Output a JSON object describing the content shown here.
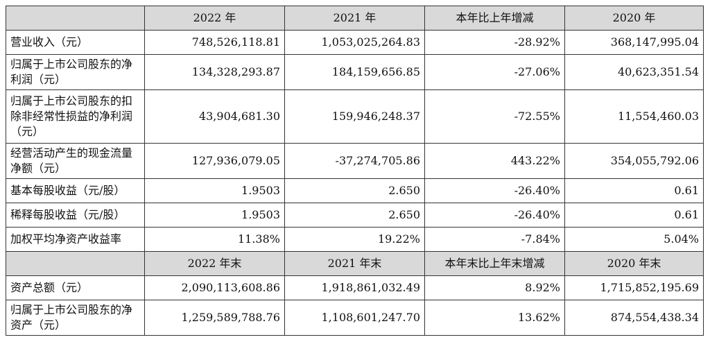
{
  "header": [
    "",
    "2022 年",
    "2021 年",
    "本年比上年增减",
    "2020 年"
  ],
  "rows": [
    {
      "label": "营业收入（元）",
      "values": [
        "748,526,118.81",
        "1,053,025,264.83",
        "-28.92%",
        "368,147,995.04"
      ]
    },
    {
      "label": "归属于上市公司股东的净利润（元）",
      "values": [
        "134,328,293.87",
        "184,159,656.85",
        "-27.06%",
        "40,623,351.54"
      ]
    },
    {
      "label": "归属于上市公司股东的扣除非经常性损益的净利润（元）",
      "values": [
        "43,904,681.30",
        "159,946,248.37",
        "-72.55%",
        "11,554,460.03"
      ]
    },
    {
      "label": "经营活动产生的现金流量净额（元）",
      "values": [
        "127,936,079.05",
        "-37,274,705.86",
        "443.22%",
        "354,055,792.06"
      ]
    },
    {
      "label": "基本每股收益（元/股）",
      "values": [
        "1.9503",
        "2.650",
        "-26.40%",
        "0.61"
      ]
    },
    {
      "label": "稀释每股收益（元/股）",
      "values": [
        "1.9503",
        "2.650",
        "-26.40%",
        "0.61"
      ]
    },
    {
      "label": "加权平均净资产收益率",
      "values": [
        "11.38%",
        "19.22%",
        "-7.84%",
        "5.04%"
      ]
    }
  ],
  "subheader": [
    "",
    "2022 年末",
    "2021 年末",
    "本年末比上年末增减",
    "2020 年末"
  ],
  "rows2": [
    {
      "label": "资产总额（元）",
      "values": [
        "2,090,113,608.86",
        "1,918,861,032.49",
        "8.92%",
        "1,715,852,195.69"
      ]
    },
    {
      "label": "归属于上市公司股东的净资产（元）",
      "values": [
        "1,259,589,788.76",
        "1,108,601,247.70",
        "13.62%",
        "874,554,438.34"
      ]
    }
  ]
}
